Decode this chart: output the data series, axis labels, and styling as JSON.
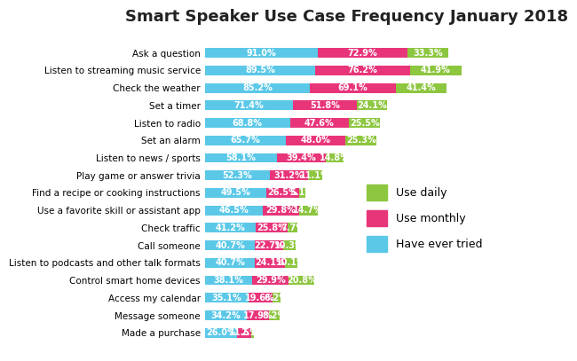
{
  "title": "Smart Speaker Use Case Frequency January 2018",
  "categories": [
    "Ask a question",
    "Listen to streaming music service",
    "Check the weather",
    "Set a timer",
    "Listen to radio",
    "Set an alarm",
    "Listen to news / sports",
    "Play game or answer trivia",
    "Find a recipe or cooking instructions",
    "Use a favorite skill or assistant app",
    "Check traffic",
    "Call someone",
    "Listen to podcasts and other talk formats",
    "Control smart home devices",
    "Access my calendar",
    "Message someone",
    "Made a purchase"
  ],
  "have_ever_tried": [
    91.0,
    89.5,
    85.2,
    71.4,
    68.8,
    65.7,
    58.1,
    52.3,
    49.5,
    46.5,
    41.2,
    40.7,
    40.7,
    38.1,
    35.1,
    34.2,
    26.0
  ],
  "use_monthly": [
    72.9,
    76.2,
    69.1,
    51.8,
    47.6,
    48.0,
    39.4,
    31.2,
    26.5,
    29.8,
    25.8,
    22.7,
    24.1,
    29.9,
    19.6,
    17.9,
    11.5
  ],
  "use_daily": [
    33.3,
    41.9,
    41.4,
    24.1,
    25.5,
    25.3,
    14.8,
    11.1,
    5.1,
    14.7,
    7.7,
    10.3,
    10.1,
    20.8,
    6.2,
    8.2,
    2.1
  ],
  "color_tried": "#5bc8e8",
  "color_monthly": "#e8357a",
  "color_daily": "#8dc63f",
  "bar_height": 0.55,
  "title_fontsize": 13,
  "label_fontsize": 7.0,
  "tick_fontsize": 7.5,
  "legend_fontsize": 9,
  "bg_color": "#ffffff"
}
